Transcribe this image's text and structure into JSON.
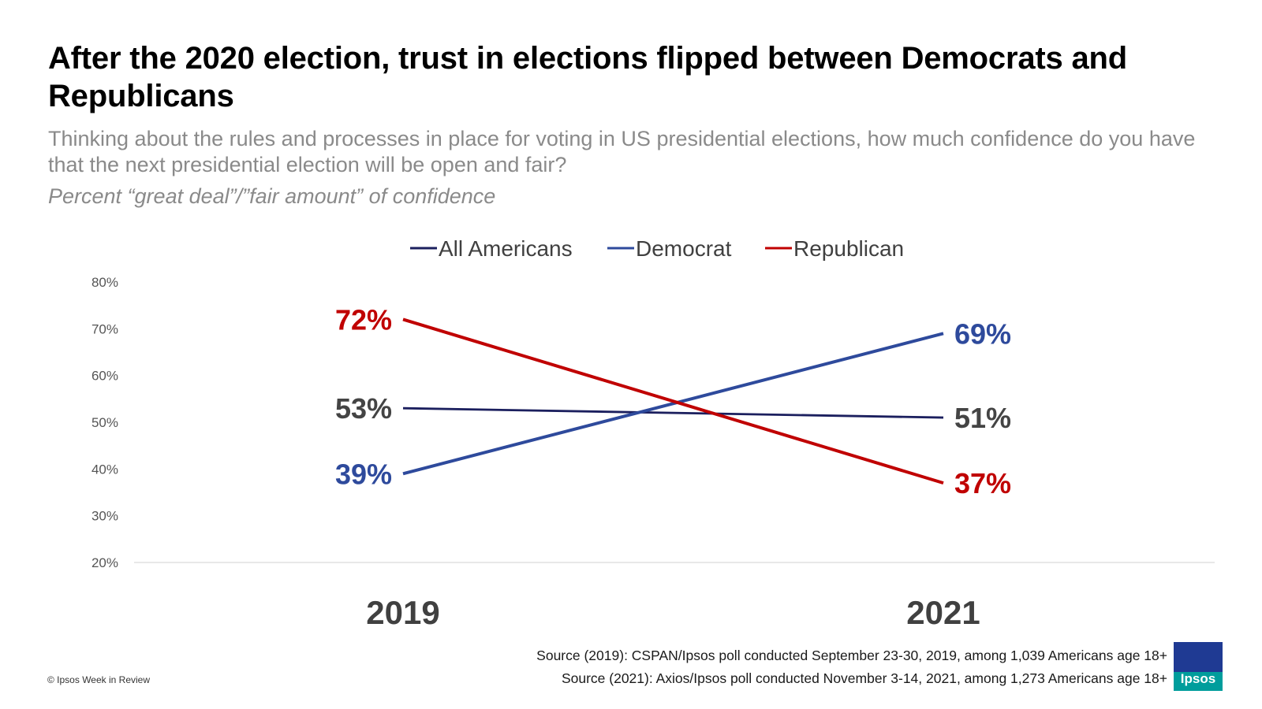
{
  "title": "After the 2020 election, trust in elections flipped between Democrats and Republicans",
  "subtitle": "Thinking about the rules and processes in place for voting in US presidential elections, how much confidence do you have that the next presidential election will be open and fair?",
  "measure": "Percent “great deal”/”fair amount” of confidence",
  "chart_data": {
    "type": "line",
    "categories": [
      "2019",
      "2021"
    ],
    "series": [
      {
        "name": "All Americans",
        "values": [
          53,
          51
        ],
        "labels": [
          "53%",
          "51%"
        ],
        "color": "#1b1f5e",
        "label_color": "#444444"
      },
      {
        "name": "Democrat",
        "values": [
          39,
          69
        ],
        "labels": [
          "39%",
          "69%"
        ],
        "color": "#2e4a9c",
        "label_color": "#2e4a9c"
      },
      {
        "name": "Republican",
        "values": [
          72,
          37
        ],
        "labels": [
          "72%",
          "37%"
        ],
        "color": "#c00000",
        "label_color": "#c00000"
      }
    ],
    "ylim": [
      20,
      80
    ],
    "yticks": [
      20,
      30,
      40,
      50,
      60,
      70,
      80
    ],
    "ytick_labels": [
      "20%",
      "30%",
      "40%",
      "50%",
      "60%",
      "70%",
      "80%"
    ],
    "legend_position": "top-center",
    "grid": false
  },
  "footer": {
    "copyright": "© Ipsos Week in Review",
    "source_2019": "Source (2019): CSPAN/Ipsos poll conducted September 23-30, 2019, among 1,039 Americans age 18+",
    "source_2021": "Source (2021): Axios/Ipsos poll conducted November 3-14, 2021, among 1,273 Americans age 18+"
  },
  "logo": {
    "text": "Ipsos",
    "name": "ipsos-logo",
    "colors": [
      "#1f3a93",
      "#009d9c"
    ]
  }
}
